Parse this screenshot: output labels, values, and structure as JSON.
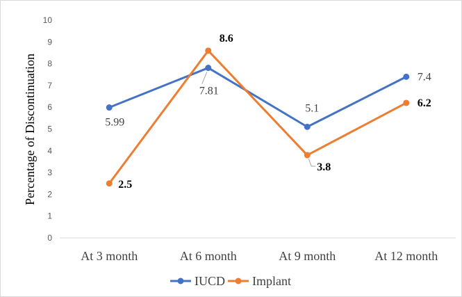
{
  "chart_data": {
    "type": "line",
    "title": "",
    "xlabel": "",
    "ylabel": "Percentage of Discontinuation",
    "categories": [
      "At 3 month",
      "At 6 month",
      "At 9 month",
      "At 12 month"
    ],
    "ylim": [
      0,
      10
    ],
    "yticks": [
      0,
      1,
      2,
      3,
      4,
      5,
      6,
      7,
      8,
      9,
      10
    ],
    "grid": false,
    "legend_position": "bottom",
    "series": [
      {
        "name": "IUCD",
        "color": "#4472C4",
        "values": [
          5.99,
          7.81,
          5.1,
          7.4
        ],
        "labels": [
          "5.99",
          "7.81",
          "5.1",
          "7.4"
        ]
      },
      {
        "name": "Implant",
        "color": "#ED7D31",
        "values": [
          2.5,
          8.6,
          3.8,
          6.2
        ],
        "labels": [
          "2.5",
          "8.6",
          "3.8",
          "6.2"
        ]
      }
    ]
  }
}
